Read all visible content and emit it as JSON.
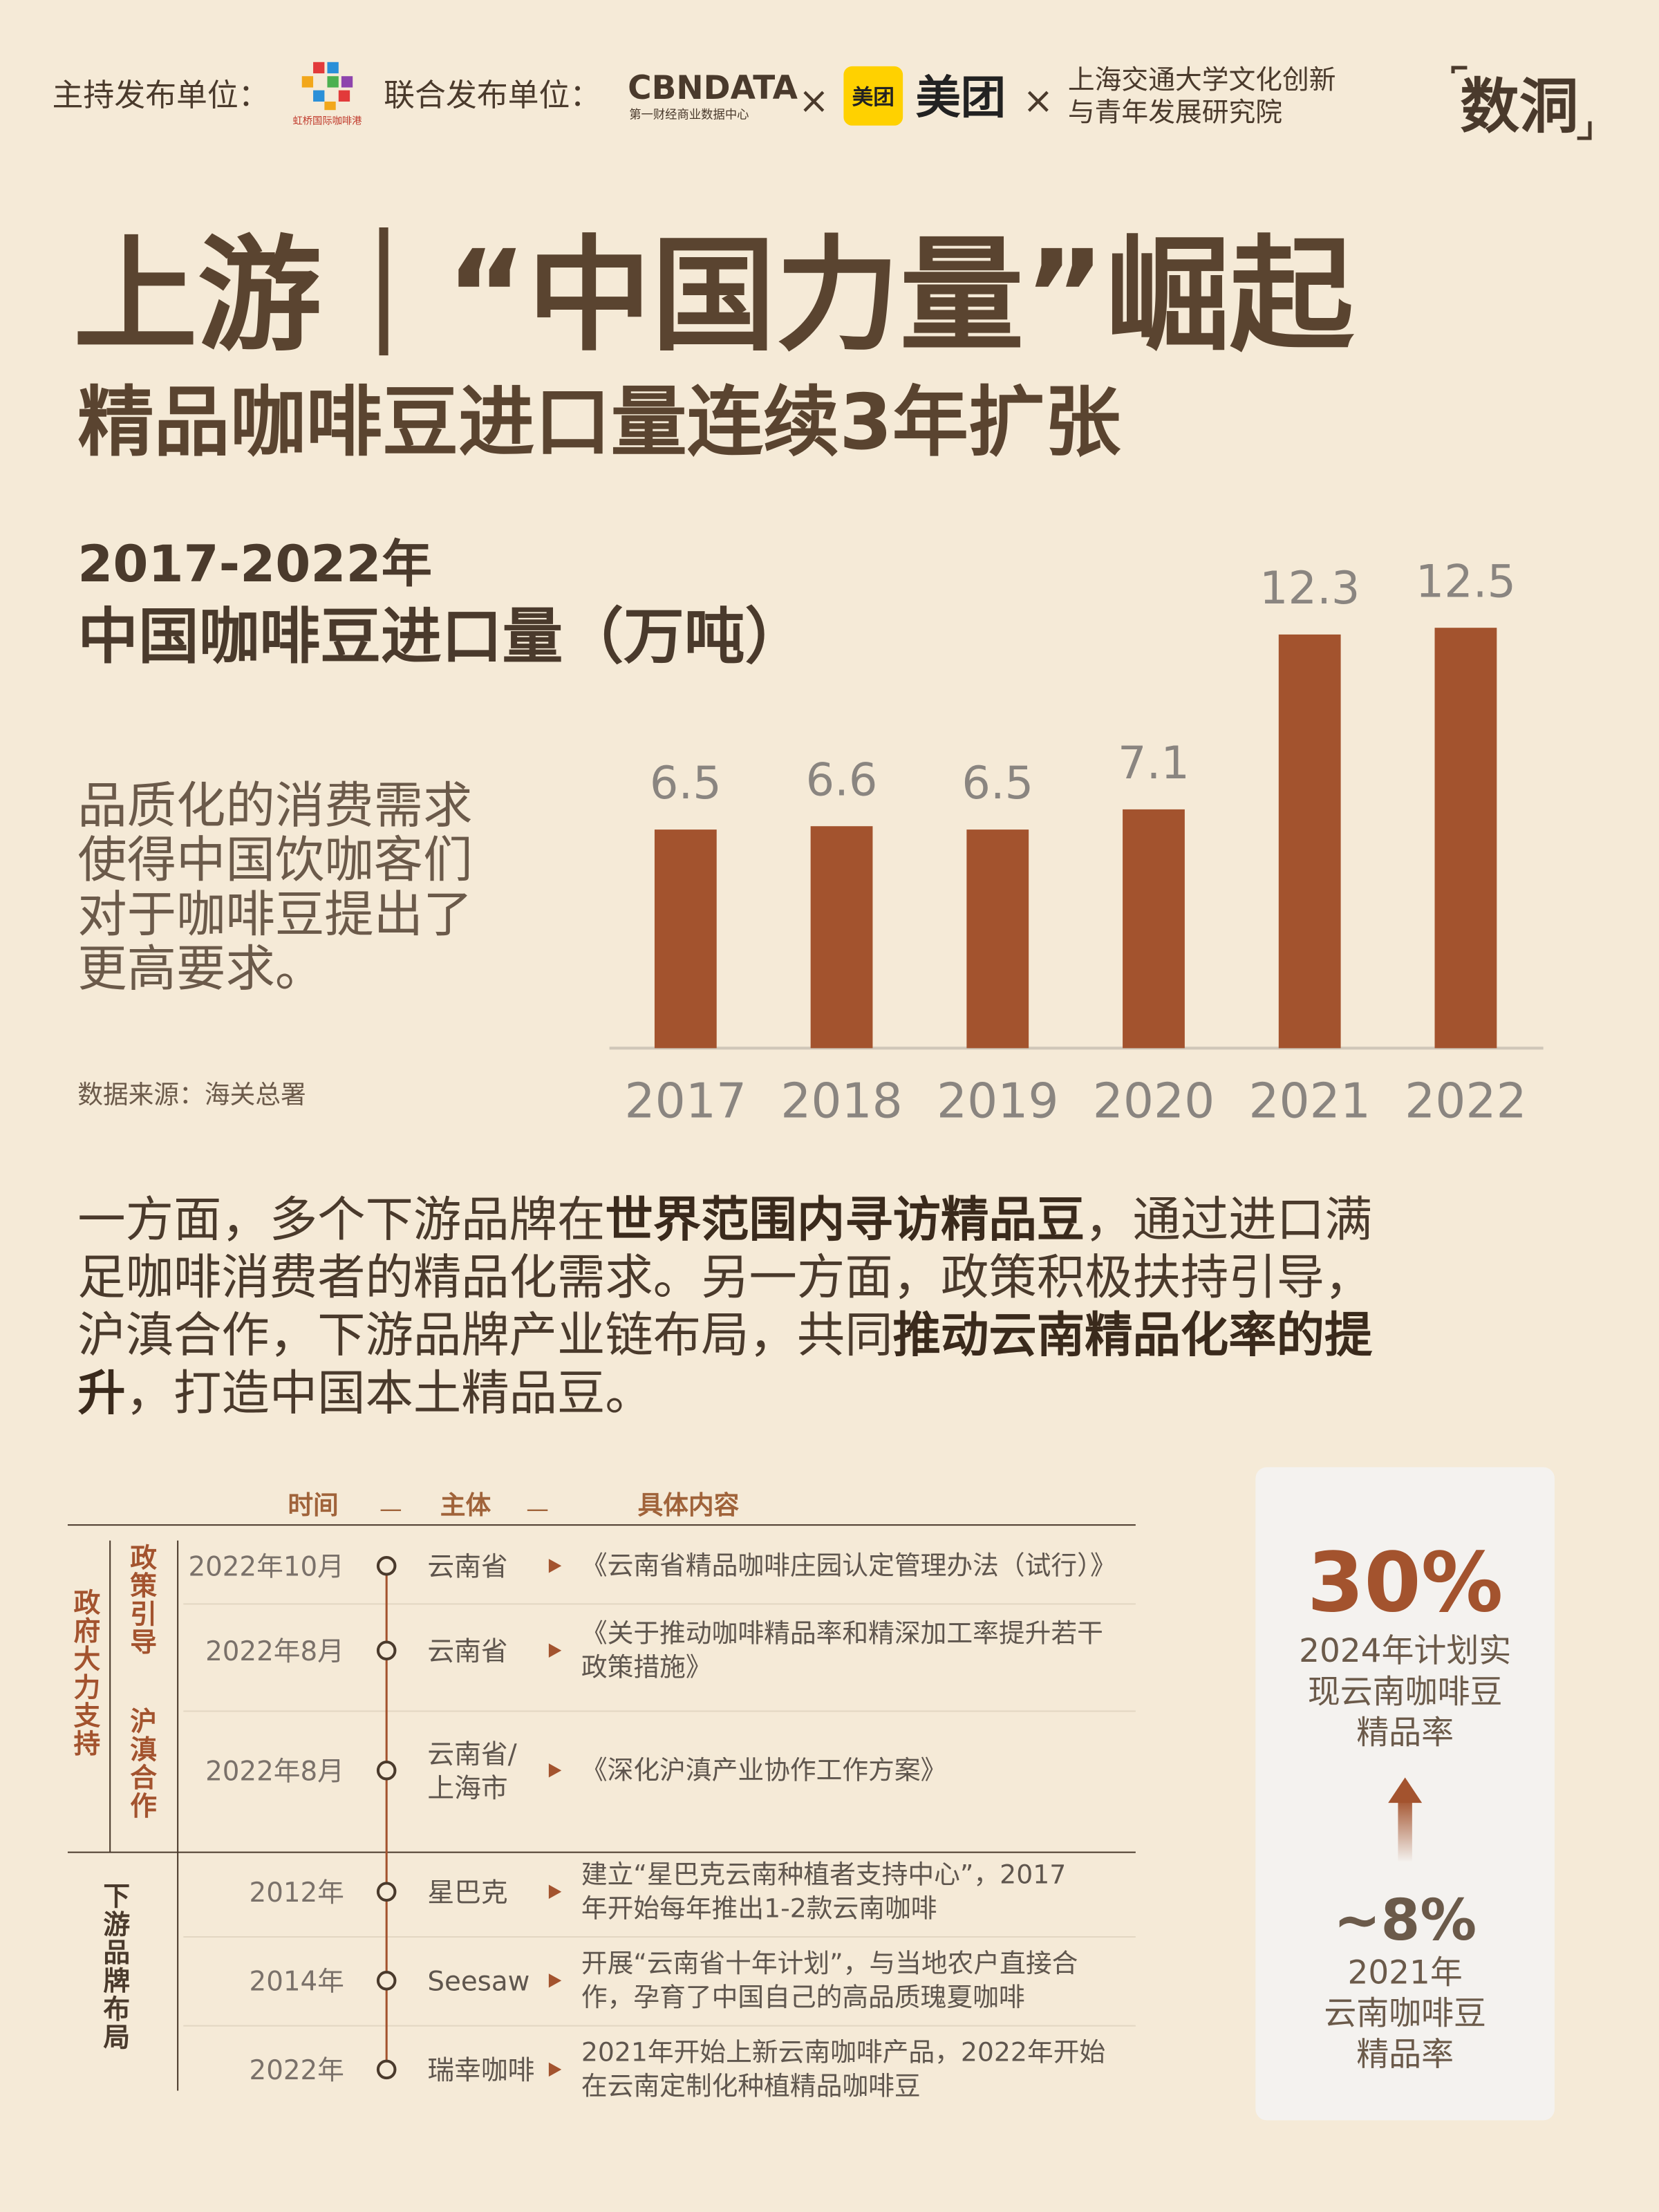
{
  "header": {
    "host_label": "主持发布单位：",
    "host_logo": "虹桥国际咖啡港",
    "co_label": "联合发布单位：",
    "partner1": "CBNDATA",
    "partner1_sub": "第一财经商业数据中心",
    "separator": "×",
    "partner2_icon": "美团",
    "partner2": "美团",
    "partner3_lines": [
      "上海交通大学文化创新",
      "与青年发展研究院"
    ],
    "brand": "数洞"
  },
  "title": "上游｜“中国力量”崛起",
  "subtitle": "精品咖啡豆进口量连续3年扩张",
  "chart_data": {
    "type": "bar",
    "title": "2017-2022年",
    "subtitle": "中国咖啡豆进口量（万吨）",
    "description": [
      "品质化的消费需求",
      "使得中国饮咖客们",
      "对于咖啡豆提出了",
      "更高要求。"
    ],
    "source": "数据来源：海关总署",
    "categories": [
      "2017",
      "2018",
      "2019",
      "2020",
      "2021",
      "2022"
    ],
    "values": [
      6.5,
      6.6,
      6.5,
      7.1,
      12.3,
      12.5
    ],
    "color": "#a3532e"
  },
  "paragraph": [
    [
      {
        "text": "一方面，多个下游品牌在",
        "bold": false
      },
      {
        "text": "世界范围内寻访精品豆",
        "bold": true
      },
      {
        "text": "，通过进口满",
        "bold": false
      }
    ],
    [
      {
        "text": "足咖啡消费者的精品化需求。另一方面，政策积极扶持引导，",
        "bold": false
      }
    ],
    [
      {
        "text": "沪滇合作，下游品牌产业链布局，共同",
        "bold": false
      },
      {
        "text": "推动云南精品化率的提",
        "bold": true
      }
    ],
    [
      {
        "text": "升",
        "bold": true
      },
      {
        "text": "，打造中国本土精品豆。",
        "bold": false
      }
    ]
  ],
  "timeline": {
    "headers": [
      "时间",
      "主体",
      "具体内容"
    ],
    "header_separator": "—",
    "groups": [
      "政府大力支持",
      "下游品牌布局"
    ],
    "subgroups": [
      "政策引导",
      "沪滇合作"
    ],
    "rows": [
      {
        "time": "2022年10月",
        "entity": [
          "云南省"
        ],
        "content": [
          "《云南省精品咖啡庄园认定管理办法（试行）》"
        ]
      },
      {
        "time": "2022年8月",
        "entity": [
          "云南省"
        ],
        "content": [
          "《关于推动咖啡精品率和精深加工率提升若干",
          "政策措施》"
        ]
      },
      {
        "time": "2022年8月",
        "entity": [
          "云南省/",
          "上海市"
        ],
        "content": [
          "《深化沪滇产业协作工作方案》"
        ]
      },
      {
        "time": "2012年",
        "entity": [
          "星巴克"
        ],
        "content": [
          "建立“星巴克云南种植者支持中心”，2017",
          "年开始每年推出1-2款云南咖啡"
        ]
      },
      {
        "time": "2014年",
        "entity": [
          "Seesaw"
        ],
        "content": [
          "开展“云南省十年计划”，与当地农户直接合",
          "作，孕育了中国自己的高品质瑰夏咖啡"
        ]
      },
      {
        "time": "2022年",
        "entity": [
          "瑞幸咖啡"
        ],
        "content": [
          "2021年开始上新云南咖啡产品，2022年开始",
          "在云南定制化种植精品咖啡豆"
        ]
      }
    ]
  },
  "stats": {
    "target_value": "30%",
    "target_label": [
      "2024年计划实",
      "现云南咖啡豆",
      "精品率"
    ],
    "current_value": "~8%",
    "current_label": [
      "2021年",
      "云南咖啡豆",
      "精品率"
    ]
  }
}
